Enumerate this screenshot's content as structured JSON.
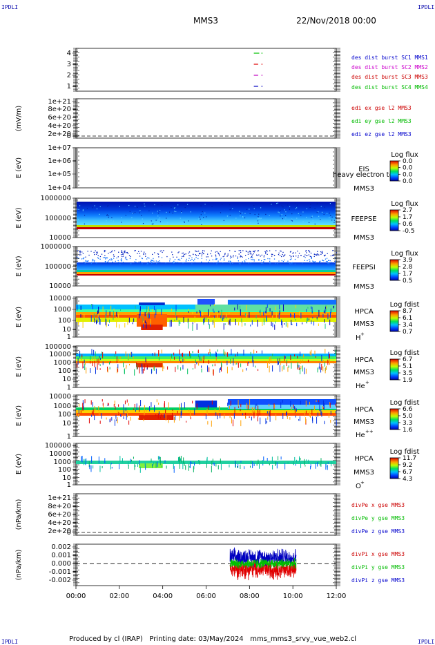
{
  "header": {
    "corner_label": "IPDLI",
    "spacecraft": "MMS3",
    "date": "22/Nov/2018 00:00"
  },
  "footer": {
    "produced_by": "Produced by cl (IRAP)",
    "printing_date": "Printing date: 03/May/2024",
    "script_name": "mms_mms3_srvy_vue_web2.cl"
  },
  "colors": {
    "red": "#e00000",
    "green": "#00c000",
    "blue": "#0000c0",
    "magenta": "#c000c0",
    "legend_red": "#cc0000",
    "legend_green": "#00bb00",
    "legend_blue": "#0000cc",
    "legend_magenta": "#cc00cc"
  },
  "chart_data": {
    "type": "line",
    "xlabel": "",
    "x_ticks": [
      "00:00",
      "02:00",
      "04:00",
      "06:00",
      "08:00",
      "10:00",
      "12:00"
    ],
    "xlim_hours": [
      0,
      12
    ],
    "panels": [
      {
        "id": "burst",
        "ylabel": "",
        "y_ticks": [
          "4",
          "3",
          "2",
          "1"
        ],
        "legend": [
          "des dist burst SC1 MMS1",
          "des dist burst SC2 MMS2",
          "des dist burst SC3 MMS3",
          "des dist burst SC4 MMS4"
        ],
        "legend_colors": [
          "blue",
          "magenta",
          "red",
          "green"
        ],
        "bursts": [
          {
            "sc": 4,
            "color": "green",
            "t": [
              [
                8.2,
                8.45
              ],
              [
                8.55,
                8.6
              ]
            ]
          },
          {
            "sc": 3,
            "color": "red",
            "t": [
              [
                8.2,
                8.4
              ],
              [
                8.55,
                8.6
              ]
            ]
          },
          {
            "sc": 2,
            "color": "magenta",
            "t": [
              [
                8.2,
                8.4
              ],
              [
                8.55,
                8.6
              ]
            ]
          },
          {
            "sc": 1,
            "color": "blue",
            "t": [
              [
                8.2,
                8.4
              ],
              [
                8.55,
                8.6
              ]
            ]
          }
        ]
      },
      {
        "id": "edi",
        "ylabel": "(mV/m)",
        "y_ticks": [
          "1e+21",
          "8e+20",
          "6e+20",
          "4e+20",
          "2e+20",
          "0"
        ],
        "legend": [
          "edi ex gse l2 MMS3",
          "edi ey gse l2 MMS3",
          "edi ez gse l2 MMS3"
        ],
        "legend_colors": [
          "red",
          "green",
          "blue"
        ]
      },
      {
        "id": "eis",
        "ylabel": "E (eV)",
        "y_ticks": [
          "1e+07",
          "1e+06",
          "1e+05",
          "1e+04"
        ],
        "labels": [
          "EIS",
          "MMS3"
        ],
        "overlay_text": "heavy electron to",
        "colorbar_title": "Log flux",
        "colorbar_ticks": [
          "0.0",
          "0.0",
          "0.0",
          "0.0"
        ]
      },
      {
        "id": "feepse",
        "ylabel": "E (eV)",
        "y_ticks": [
          "1000000",
          "100000",
          "10000"
        ],
        "labels": [
          "FEEPSE",
          "MMS3"
        ],
        "colorbar_title": "Log flux",
        "colorbar_ticks": [
          "2.7",
          "1.7",
          "0.6",
          "-0.5"
        ]
      },
      {
        "id": "feepsi",
        "ylabel": "E (eV)",
        "y_ticks": [
          "1000000",
          "100000",
          "10000"
        ],
        "labels": [
          "FEEPSI",
          "MMS3"
        ],
        "colorbar_title": "Log flux",
        "colorbar_ticks": [
          "3.9",
          "2.8",
          "1.7",
          "0.5"
        ]
      },
      {
        "id": "hpca_h",
        "ylabel": "E (eV)",
        "y_ticks": [
          "10000",
          "1000",
          "100",
          "10",
          "1"
        ],
        "labels": [
          "HPCA",
          "MMS3",
          "H",
          "+"
        ],
        "colorbar_title": "Log fdist",
        "colorbar_ticks": [
          "8.7",
          "6.1",
          "3.4",
          "0.7"
        ]
      },
      {
        "id": "hpca_he",
        "ylabel": "E (eV)",
        "y_ticks": [
          "100000",
          "10000",
          "1000",
          "100",
          "10",
          "1"
        ],
        "labels": [
          "HPCA",
          "MMS3",
          "He",
          "+"
        ],
        "colorbar_title": "Log fdist",
        "colorbar_ticks": [
          "6.7",
          "5.1",
          "3.5",
          "1.9"
        ]
      },
      {
        "id": "hpca_hepp",
        "ylabel": "E (eV)",
        "y_ticks": [
          "10000",
          "1000",
          "100",
          "10",
          "1"
        ],
        "labels": [
          "HPCA",
          "MMS3",
          "He",
          "++"
        ],
        "colorbar_title": "Log fdist",
        "colorbar_ticks": [
          "6.6",
          "5.0",
          "3.3",
          "1.6"
        ]
      },
      {
        "id": "hpca_o",
        "ylabel": "E (eV)",
        "y_ticks": [
          "100000",
          "10000",
          "1000",
          "100",
          "10",
          "1"
        ],
        "labels": [
          "HPCA",
          "MMS3",
          "O",
          "+"
        ],
        "colorbar_title": "Log fdist",
        "colorbar_ticks": [
          "11.7",
          "9.2",
          "6.7",
          "4.3"
        ]
      },
      {
        "id": "divpe",
        "ylabel": "(nPa/km)",
        "y_ticks": [
          "1e+21",
          "8e+20",
          "6e+20",
          "4e+20",
          "2e+20",
          "0"
        ],
        "legend": [
          "divPe x gse MMS3",
          "divPe y gse MMS3",
          "divPe z gse MMS3"
        ],
        "legend_colors": [
          "red",
          "green",
          "blue"
        ]
      },
      {
        "id": "divpi",
        "ylabel": "(nPa/km)",
        "y_ticks": [
          "0.002",
          "0.001",
          "0.000",
          "-0.001",
          "-0.002"
        ],
        "ylim": [
          -0.0025,
          0.0022
        ],
        "legend": [
          "divPi x gse MMS3",
          "divPi y gse MMS3",
          "divPi z gse MMS3"
        ],
        "legend_colors": [
          "red",
          "green",
          "blue"
        ],
        "data_window_hours": [
          7.1,
          10.15
        ]
      }
    ]
  }
}
